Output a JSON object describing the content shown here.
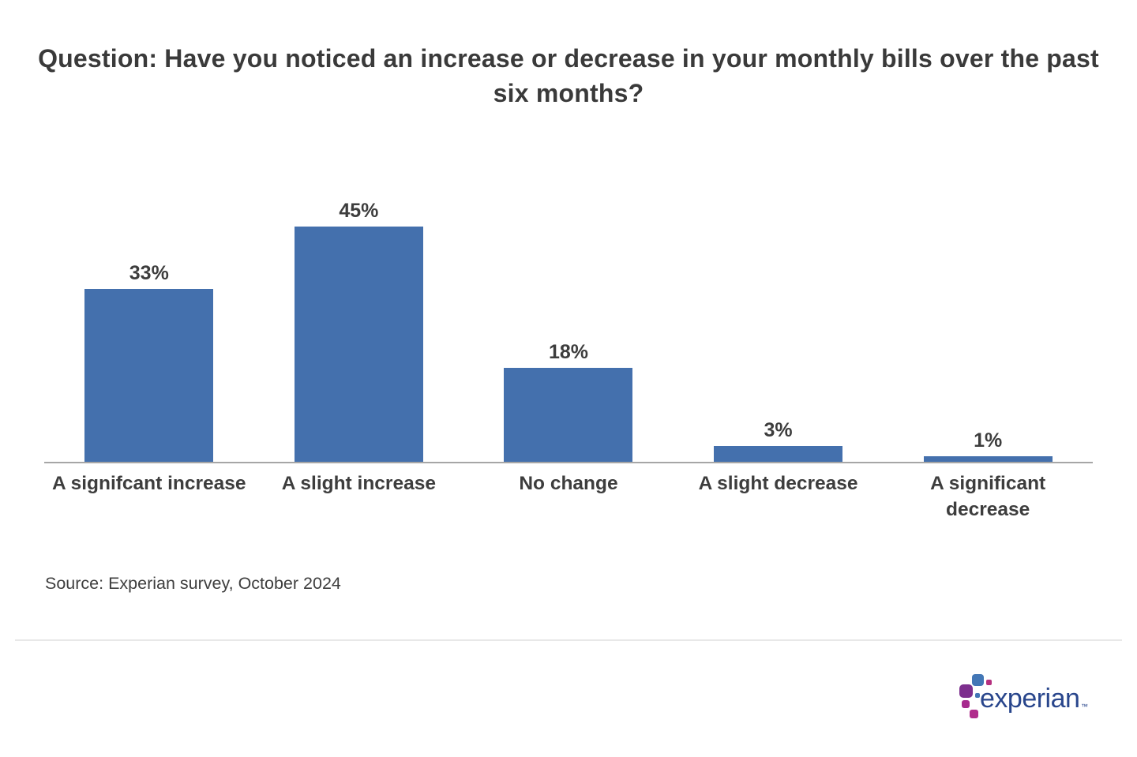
{
  "title": "Question: Have you noticed an increase or decrease in your monthly bills over the past six months?",
  "chart_data": {
    "type": "bar",
    "categories": [
      "A signifcant increase",
      "A slight increase",
      "No change",
      "A slight decrease",
      "A significant decrease"
    ],
    "values": [
      33,
      45,
      18,
      3,
      1
    ],
    "value_labels": [
      "33%",
      "45%",
      "18%",
      "3%",
      "1%"
    ],
    "bar_color": "#4470ad",
    "ylim": [
      0,
      50
    ],
    "grid": false,
    "legend": false,
    "title": "Question: Have you noticed an increase or decrease in your monthly bills over the past six months?",
    "xlabel": "",
    "ylabel": ""
  },
  "source": "Source: Experian survey, October 2024",
  "logo": {
    "text": "experian",
    "tm": "™",
    "text_color": "#29468c",
    "block_colors": {
      "blue": "#4377b6",
      "purple": "#7d2f8e",
      "magenta": "#b02c8c"
    }
  },
  "colors": {
    "bar": "#4470ad",
    "axis_line": "#a6a6a6",
    "text": "#3d3d3d",
    "divider": "#e8e8e8"
  }
}
